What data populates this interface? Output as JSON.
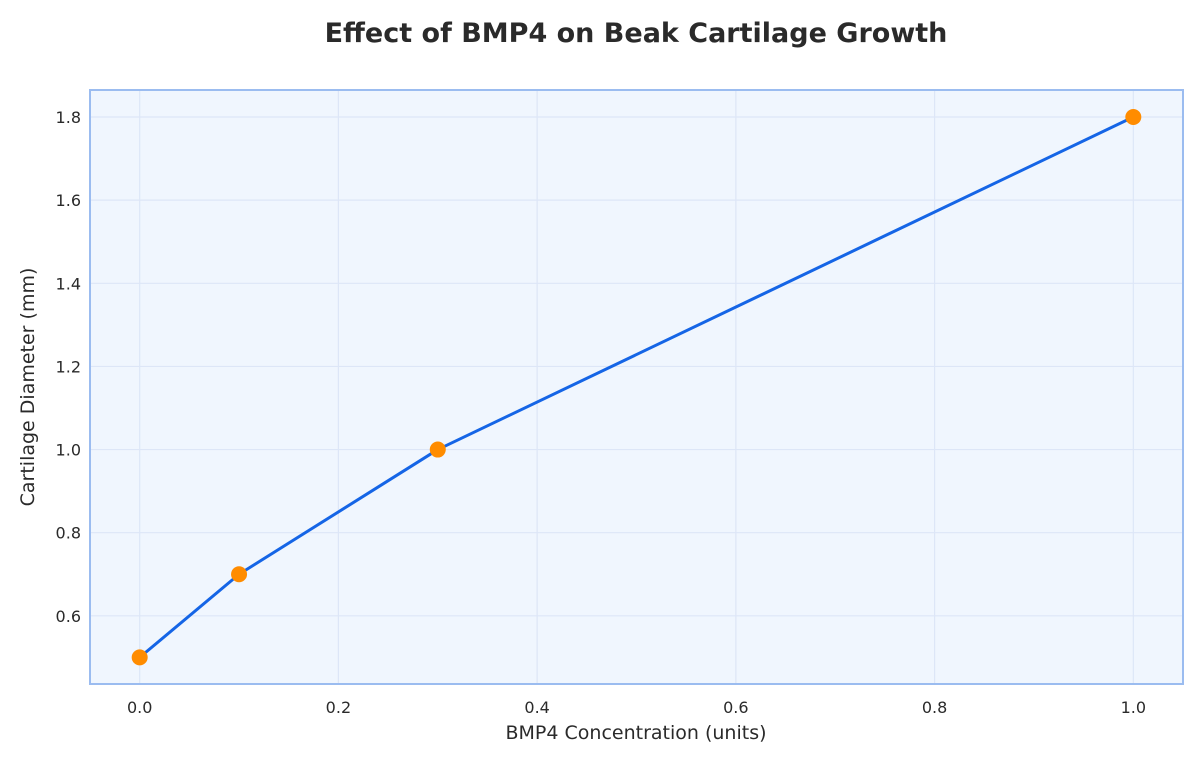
{
  "chart_data": {
    "type": "line",
    "title": "Effect of BMP4 on Beak Cartilage Growth",
    "xlabel": "BMP4 Concentration (units)",
    "ylabel": "Cartilage Diameter (mm)",
    "x": [
      0.0,
      0.1,
      0.3,
      1.0
    ],
    "series": [
      {
        "values": [
          0.5,
          0.7,
          1.0,
          1.8
        ],
        "line_color": "#1565e6",
        "marker_color": "#ff8c00"
      }
    ],
    "xlim": [
      -0.05,
      1.05
    ],
    "ylim": [
      0.436,
      1.865
    ],
    "xticks": [
      "0.0",
      "0.2",
      "0.4",
      "0.6",
      "0.8",
      "1.0"
    ],
    "yticks": [
      "0.6",
      "0.8",
      "1.0",
      "1.2",
      "1.4",
      "1.6",
      "1.8"
    ],
    "grid": true,
    "plot_background": "#f0f6fe",
    "frame_color": "#9bbcf0"
  }
}
